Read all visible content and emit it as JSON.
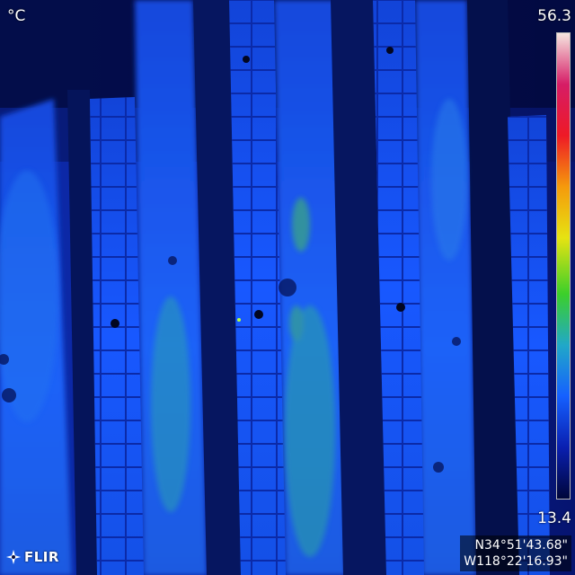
{
  "overlay": {
    "unit": "°C",
    "scale_max": "56.3",
    "scale_min": "13.4",
    "brand": "FLIR",
    "gps_lat": "N34°51'43.68\"",
    "gps_lon": "W118°22'16.93\""
  },
  "palette": [
    "#00063a",
    "#0a1fb0",
    "#1560ff",
    "#21a8c8",
    "#3ccf2a",
    "#e6e312",
    "#f59a0c",
    "#ee1a26",
    "#d61c66",
    "#f6e6e0"
  ],
  "icons": {
    "logo": "flir-logo-icon"
  }
}
